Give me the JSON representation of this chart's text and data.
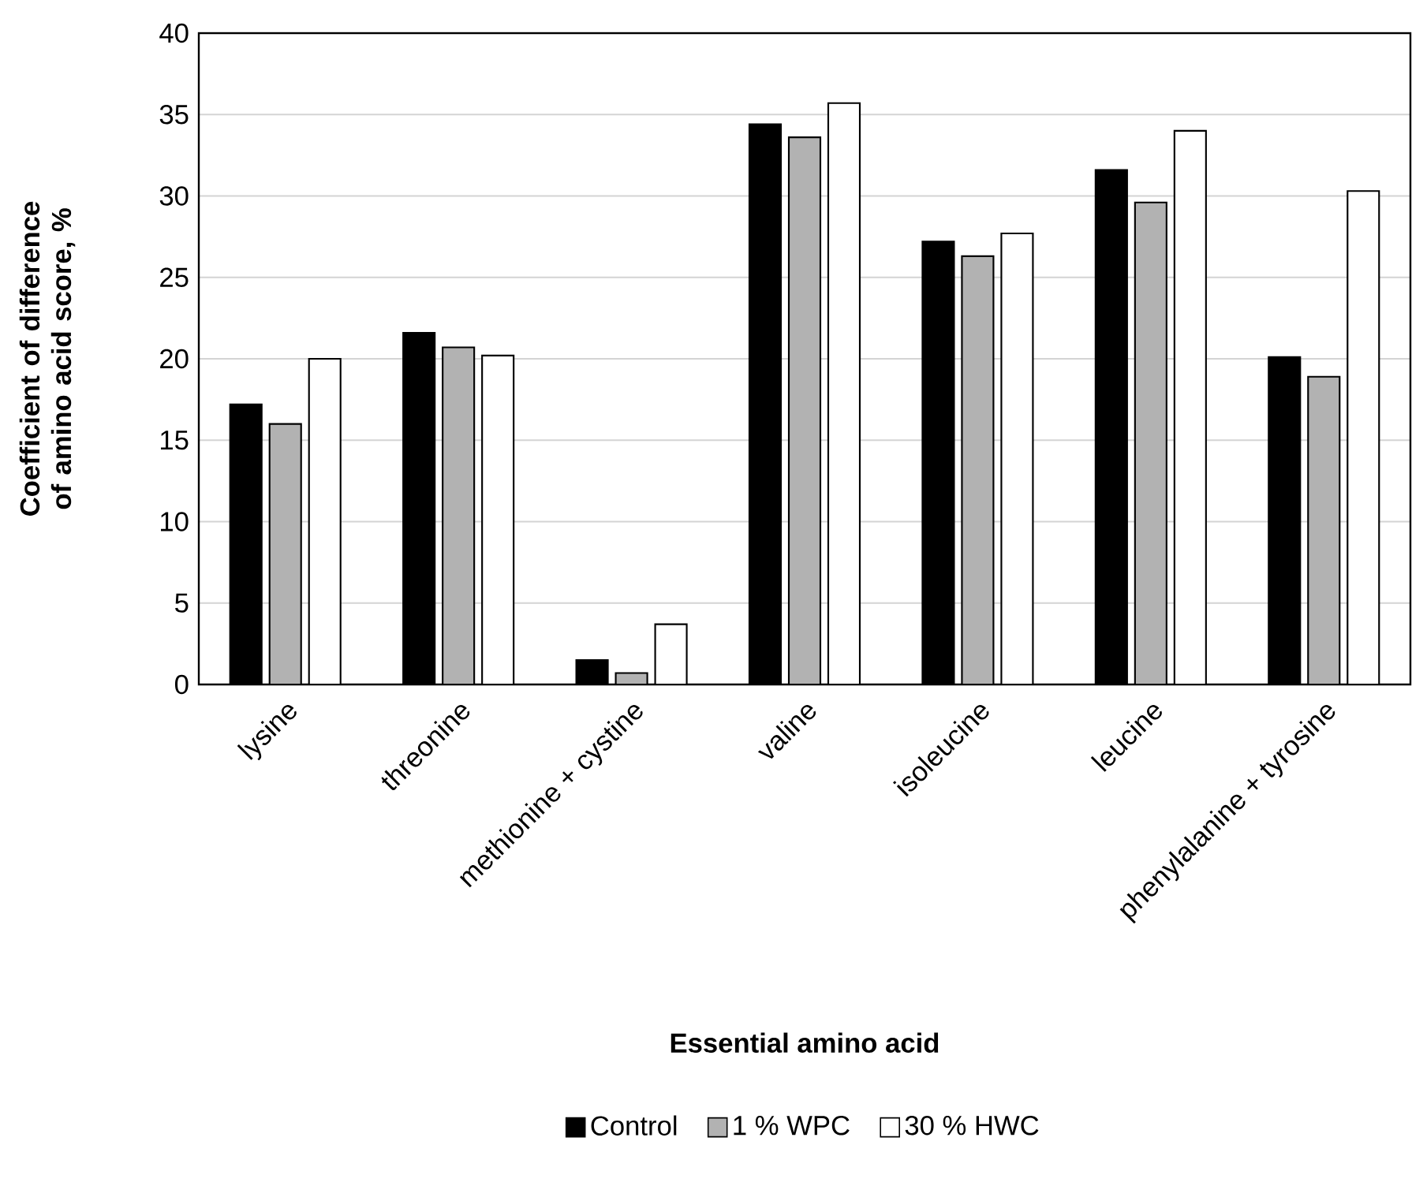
{
  "chart_data": {
    "type": "bar",
    "xlabel": "Essential amino acid",
    "ylabel": "Coefficient of difference of amino acid score, %",
    "categories": [
      "lysine",
      "threonine",
      "methionine + cystine",
      "valine",
      "isoleucine",
      "leucine",
      "phenylalanine + tyrosine"
    ],
    "series": [
      {
        "name": "Control",
        "color": "#000000",
        "values": [
          17.2,
          21.6,
          1.5,
          34.4,
          27.2,
          31.6,
          20.1
        ]
      },
      {
        "name": "1 % WPC",
        "color": "#b2b2b2",
        "values": [
          16.0,
          20.7,
          0.7,
          33.6,
          26.3,
          29.6,
          18.9
        ]
      },
      {
        "name": "30 % HWC",
        "color": "#ffffff",
        "values": [
          20.0,
          20.2,
          3.7,
          35.7,
          27.7,
          34.0,
          30.3
        ]
      }
    ],
    "ylim": [
      0,
      40
    ],
    "yticks": [
      0,
      5,
      10,
      15,
      20,
      25,
      30,
      35,
      40
    ],
    "grid": "y",
    "legend": "bottom"
  }
}
